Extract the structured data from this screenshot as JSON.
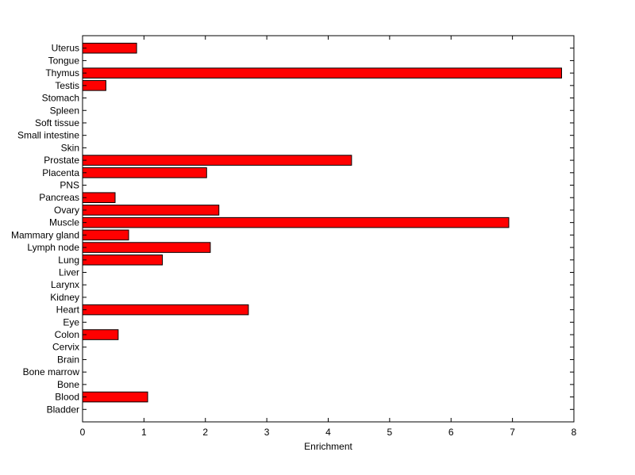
{
  "chart_data": {
    "type": "bar",
    "orientation": "horizontal",
    "xlabel": "Enrichment",
    "ylabel": "",
    "xlim": [
      0,
      8
    ],
    "xticks": [
      0,
      1,
      2,
      3,
      4,
      5,
      6,
      7,
      8
    ],
    "grid": false,
    "bar_color": "#ff0000",
    "categories": [
      "Uterus",
      "Tongue",
      "Thymus",
      "Testis",
      "Stomach",
      "Spleen",
      "Soft tissue",
      "Small intestine",
      "Skin",
      "Prostate",
      "Placenta",
      "PNS",
      "Pancreas",
      "Ovary",
      "Muscle",
      "Mammary gland",
      "Lymph node",
      "Lung",
      "Liver",
      "Larynx",
      "Kidney",
      "Heart",
      "Eye",
      "Colon",
      "Cervix",
      "Brain",
      "Bone marrow",
      "Bone",
      "Blood",
      "Bladder"
    ],
    "values": [
      0.88,
      0,
      7.8,
      0.38,
      0,
      0,
      0,
      0,
      0,
      4.38,
      2.02,
      0,
      0.53,
      2.22,
      6.94,
      0.75,
      2.08,
      1.3,
      0,
      0,
      0,
      2.7,
      0,
      0.58,
      0,
      0,
      0,
      0,
      1.06,
      0
    ]
  }
}
